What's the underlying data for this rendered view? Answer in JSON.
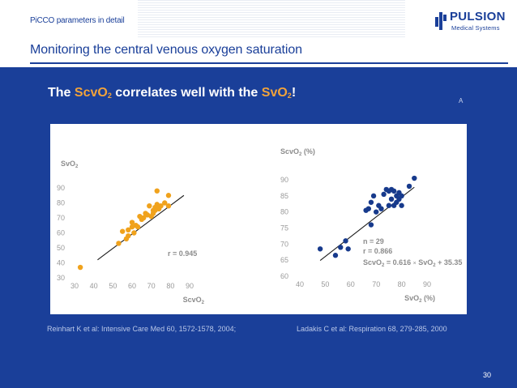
{
  "header": {
    "breadcrumb": "PiCCO parameters in detail",
    "title": "Monitoring the central venous oxygen saturation"
  },
  "logo": {
    "name": "PULSION",
    "subtitle": "Medical Systems"
  },
  "headline": {
    "part1": "The ",
    "scv": "ScvO",
    "sub1": "2",
    "part2": " correlates well with the ",
    "sv": "SvO",
    "sub2": "2",
    "part3": "!"
  },
  "corner_mark": "A",
  "references": {
    "left": "Reinhart K et al: Intensive Care Med 60, 1572-1578, 2004;",
    "right": "Ladakis C et al: Respiration 68, 279-285, 2000"
  },
  "page_number": "30",
  "colors": {
    "background": "#1a3f99",
    "accent": "#f2a33a",
    "left_points": "#f0a21c",
    "right_points": "#173a8c"
  },
  "chart_data": [
    {
      "type": "scatter",
      "ylabel_main": "SvO",
      "ylabel_sub": "2",
      "xlabel_main": "ScvO",
      "xlabel_sub": "2",
      "xlim": [
        30,
        90
      ],
      "ylim": [
        30,
        90
      ],
      "xticks": [
        30,
        40,
        50,
        60,
        70,
        80,
        90
      ],
      "yticks": [
        30,
        40,
        50,
        60,
        70,
        80,
        90
      ],
      "annotation": "r = 0.945",
      "regression": [
        [
          42,
          42
        ],
        [
          87,
          85
        ]
      ],
      "points": [
        [
          33,
          37
        ],
        [
          53,
          53
        ],
        [
          55,
          61
        ],
        [
          57,
          56
        ],
        [
          58,
          58
        ],
        [
          58,
          62
        ],
        [
          60,
          64
        ],
        [
          60,
          67
        ],
        [
          61,
          60
        ],
        [
          62,
          65
        ],
        [
          63,
          64
        ],
        [
          64,
          71
        ],
        [
          65,
          69
        ],
        [
          66,
          70
        ],
        [
          67,
          73
        ],
        [
          68,
          72
        ],
        [
          69,
          78
        ],
        [
          70,
          71
        ],
        [
          71,
          73
        ],
        [
          72,
          75
        ],
        [
          72,
          77
        ],
        [
          73,
          88
        ],
        [
          73,
          79
        ],
        [
          75,
          78
        ],
        [
          77,
          80
        ],
        [
          79,
          85
        ],
        [
          79,
          78
        ],
        [
          71,
          75
        ],
        [
          74,
          76
        ]
      ]
    },
    {
      "type": "scatter",
      "ylabel_main": "ScvO",
      "ylabel_sub": "2",
      "ylabel_unit": " (%)",
      "xlabel_main": "SvO",
      "xlabel_sub": "2",
      "xlabel_unit": " (%)",
      "xlim": [
        40,
        90
      ],
      "ylim": [
        60,
        90
      ],
      "xticks": [
        40,
        50,
        60,
        70,
        80,
        90
      ],
      "yticks": [
        60,
        65,
        70,
        75,
        80,
        85,
        90
      ],
      "annotation_lines": [
        "n = 29",
        "r = 0.866"
      ],
      "equation": {
        "a": "ScvO",
        "a_sub": "2",
        "mid": " = 0.616 ",
        "times": "×",
        "b": " SvO",
        "b_sub": "2",
        "end": " + 35.35"
      },
      "regression": [
        [
          48,
          64.9
        ],
        [
          85,
          87.7
        ]
      ],
      "points": [
        [
          48,
          68.5
        ],
        [
          54,
          66.5
        ],
        [
          56,
          69
        ],
        [
          58,
          71
        ],
        [
          59,
          68.5
        ],
        [
          66,
          80.5
        ],
        [
          67,
          81
        ],
        [
          68,
          76
        ],
        [
          68,
          83
        ],
        [
          69,
          85
        ],
        [
          70,
          80
        ],
        [
          71,
          82
        ],
        [
          72,
          81
        ],
        [
          73,
          85.5
        ],
        [
          74,
          87
        ],
        [
          75,
          86.5
        ],
        [
          75,
          82
        ],
        [
          76,
          87
        ],
        [
          76,
          84
        ],
        [
          77,
          86.5
        ],
        [
          77,
          82
        ],
        [
          78,
          85
        ],
        [
          78,
          83
        ],
        [
          79,
          84
        ],
        [
          79,
          86
        ],
        [
          80,
          82
        ],
        [
          80,
          85
        ],
        [
          83,
          88
        ],
        [
          85,
          90.5
        ]
      ]
    }
  ]
}
